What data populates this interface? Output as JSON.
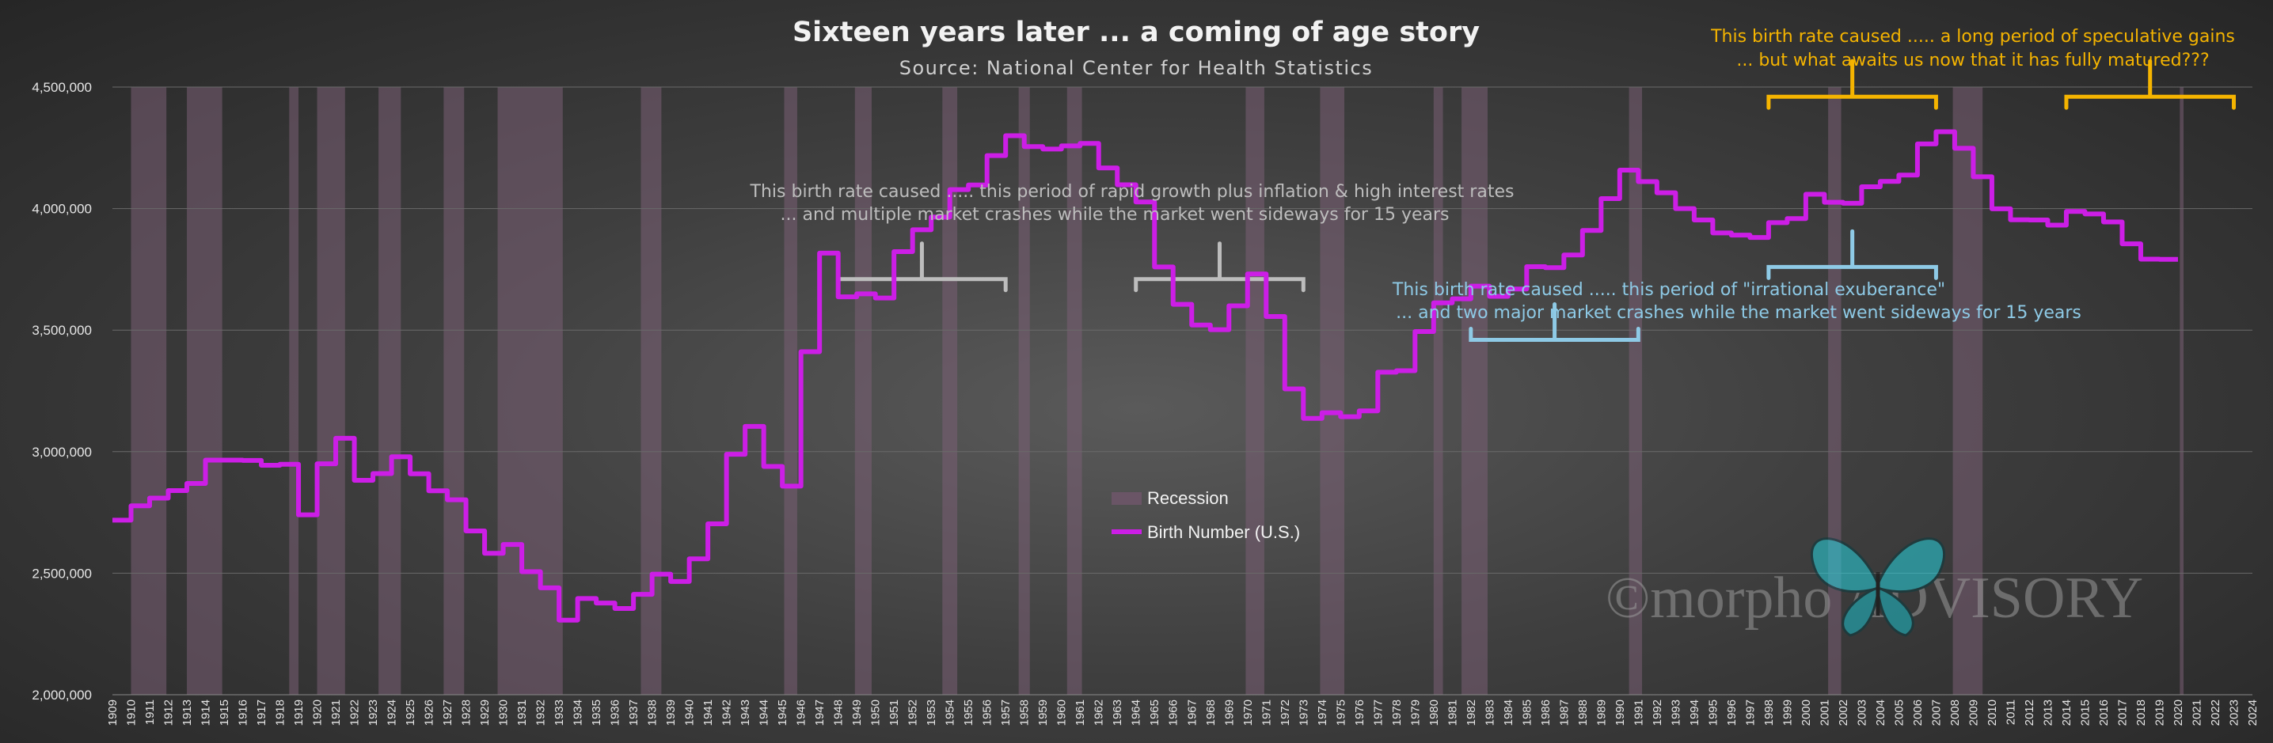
{
  "chart_data": {
    "type": "line",
    "title": "Sixteen years later ... a coming of age story",
    "subtitle": "Source: National Center for Health Statistics",
    "xlabel": "",
    "ylabel": "",
    "xlim": [
      1909,
      2024
    ],
    "ylim": [
      2000000,
      4500000
    ],
    "y_ticks": [
      {
        "value": 2000000,
        "label": "2,000,000"
      },
      {
        "value": 2500000,
        "label": "2,500,000"
      },
      {
        "value": 3000000,
        "label": "3,000,000"
      },
      {
        "value": 3500000,
        "label": "3,500,000"
      },
      {
        "value": 4000000,
        "label": "4,000,000"
      },
      {
        "value": 4500000,
        "label": "4,500,000"
      }
    ],
    "x_ticks": [
      1909,
      1910,
      1911,
      1912,
      1913,
      1914,
      1915,
      1916,
      1917,
      1918,
      1919,
      1920,
      1921,
      1922,
      1923,
      1924,
      1925,
      1926,
      1927,
      1928,
      1929,
      1930,
      1931,
      1932,
      1933,
      1934,
      1935,
      1936,
      1937,
      1938,
      1939,
      1940,
      1941,
      1942,
      1943,
      1944,
      1945,
      1946,
      1947,
      1948,
      1949,
      1950,
      1951,
      1952,
      1953,
      1954,
      1955,
      1956,
      1957,
      1958,
      1959,
      1960,
      1961,
      1962,
      1963,
      1964,
      1965,
      1966,
      1967,
      1968,
      1969,
      1970,
      1971,
      1972,
      1973,
      1974,
      1975,
      1976,
      1977,
      1978,
      1979,
      1980,
      1981,
      1982,
      1983,
      1984,
      1985,
      1986,
      1987,
      1988,
      1989,
      1990,
      1991,
      1992,
      1993,
      1994,
      1995,
      1996,
      1997,
      1998,
      1999,
      2000,
      2001,
      2002,
      2003,
      2004,
      2005,
      2006,
      2007,
      2008,
      2009,
      2010,
      2011,
      2012,
      2013,
      2014,
      2015,
      2016,
      2017,
      2018,
      2019,
      2020,
      2021,
      2022,
      2023,
      2024
    ],
    "grid": true,
    "legend_placement": "center",
    "legend": {
      "recession_label": "Recession",
      "series_label": "Birth Number (U.S.)"
    },
    "series": [
      {
        "name": "Birth Number (U.S.)",
        "color": "#cc1ee6",
        "x": [
          1909,
          1910,
          1911,
          1912,
          1913,
          1914,
          1915,
          1916,
          1917,
          1918,
          1919,
          1920,
          1921,
          1922,
          1923,
          1924,
          1925,
          1926,
          1927,
          1928,
          1929,
          1930,
          1931,
          1932,
          1933,
          1934,
          1935,
          1936,
          1937,
          1938,
          1939,
          1940,
          1941,
          1942,
          1943,
          1944,
          1945,
          1946,
          1947,
          1948,
          1949,
          1950,
          1951,
          1952,
          1953,
          1954,
          1955,
          1956,
          1957,
          1958,
          1959,
          1960,
          1961,
          1962,
          1963,
          1964,
          1965,
          1966,
          1967,
          1968,
          1969,
          1970,
          1971,
          1972,
          1973,
          1974,
          1975,
          1976,
          1977,
          1978,
          1979,
          1980,
          1981,
          1982,
          1983,
          1984,
          1985,
          1986,
          1987,
          1988,
          1989,
          1990,
          1991,
          1992,
          1993,
          1994,
          1995,
          1996,
          1997,
          1998,
          1999,
          2000,
          2001,
          2002,
          2003,
          2004,
          2005,
          2006,
          2007,
          2008,
          2009,
          2010,
          2011,
          2012,
          2013,
          2014,
          2015,
          2016,
          2017,
          2018,
          2019
        ],
        "values": [
          2718000,
          2777000,
          2809000,
          2840000,
          2869000,
          2965000,
          2965000,
          2964000,
          2944000,
          2948000,
          2740000,
          2950000,
          3055000,
          2882000,
          2910000,
          2979000,
          2909000,
          2839000,
          2802000,
          2674000,
          2582000,
          2618000,
          2506000,
          2440000,
          2307000,
          2396000,
          2377000,
          2355000,
          2413000,
          2496000,
          2466000,
          2559000,
          2703000,
          2989000,
          3104000,
          2939000,
          2858000,
          3411000,
          3817000,
          3637000,
          3649000,
          3632000,
          3823000,
          3913000,
          3965000,
          4078000,
          4097000,
          4218000,
          4300000,
          4255000,
          4245000,
          4258000,
          4268000,
          4167000,
          4098000,
          4027000,
          3760000,
          3606000,
          3521000,
          3502000,
          3600000,
          3731000,
          3556000,
          3258000,
          3137000,
          3160000,
          3144000,
          3168000,
          3327000,
          3333000,
          3494000,
          3612000,
          3629000,
          3681000,
          3639000,
          3669000,
          3761000,
          3757000,
          3809000,
          3910000,
          4041000,
          4158000,
          4111000,
          4065000,
          4000000,
          3953000,
          3900000,
          3891000,
          3881000,
          3942000,
          3959000,
          4059000,
          4026000,
          4022000,
          4090000,
          4112000,
          4138000,
          4266000,
          4316000,
          4248000,
          4131000,
          3999000,
          3954000,
          3953000,
          3932000,
          3988000,
          3978000,
          3945000,
          3855000,
          3792000,
          3791000
        ]
      }
    ],
    "recessions": [
      [
        1910,
        1911.9
      ],
      [
        1913,
        1914.9
      ],
      [
        1918.5,
        1919
      ],
      [
        1920,
        1921.5
      ],
      [
        1923.3,
        1924.5
      ],
      [
        1926.8,
        1927.9
      ],
      [
        1929.7,
        1933.2
      ],
      [
        1937.4,
        1938.5
      ],
      [
        1945.1,
        1945.8
      ],
      [
        1948.9,
        1949.8
      ],
      [
        1953.6,
        1954.4
      ],
      [
        1957.7,
        1958.3
      ],
      [
        1960.3,
        1961.1
      ],
      [
        1969.9,
        1970.9
      ],
      [
        1973.9,
        1975.2
      ],
      [
        1980,
        1980.5
      ],
      [
        1981.5,
        1982.9
      ],
      [
        1990.5,
        1991.2
      ],
      [
        2001.2,
        2001.9
      ],
      [
        2007.9,
        2009.5
      ],
      [
        2020.1,
        2020.3
      ]
    ],
    "annotations": [
      {
        "line1": "This birth rate caused ..... this period of rapid growth plus inflation & high interest rates",
        "line2": "... and multiple market crashes while the market went sideways for 15 years",
        "color": "#bdbdbd"
      },
      {
        "line1": "This birth rate caused ..... this period of \"irrational exuberance\"",
        "line2": "... and two major market crashes while the market went sideways for 15 years",
        "color": "#8ecae6"
      },
      {
        "line1": "This birth rate caused ..... a long period of speculative gains",
        "line2": "... but what awaits us now that it has fully matured???",
        "color": "#f5b400"
      }
    ]
  },
  "watermark": {
    "text": "©morpho ADVISORY",
    "icon": "butterfly-icon"
  }
}
